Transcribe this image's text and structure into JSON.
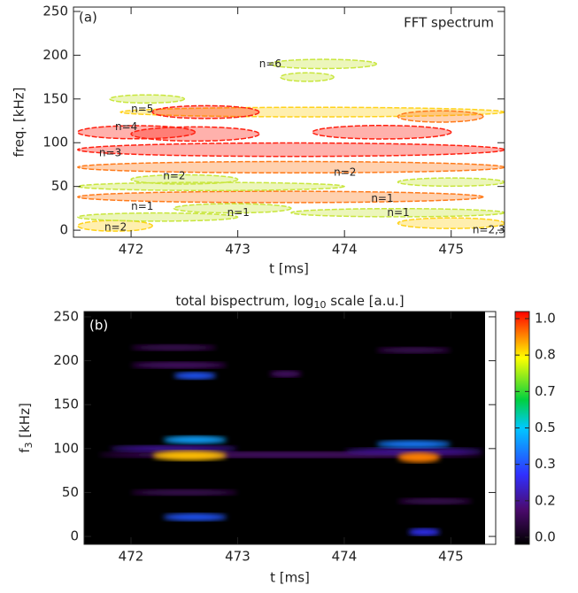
{
  "chart_data": [
    {
      "type": "contour",
      "title": "FFT spectrum",
      "panel_label": "(a)",
      "xlabel": "t  [ms]",
      "ylabel": "freq. [kHz]",
      "xlim": [
        471.46,
        475.5
      ],
      "ylim": [
        -8,
        255
      ],
      "xticks": [
        472,
        473,
        474,
        475
      ],
      "yticks": [
        0,
        50,
        100,
        150,
        200,
        250
      ],
      "ridges": [
        {
          "t0": 473.3,
          "t1": 474.3,
          "f": 190,
          "level": 0.3
        },
        {
          "t0": 473.4,
          "t1": 473.9,
          "f": 175,
          "level": 0.2
        },
        {
          "t0": 471.9,
          "t1": 475.5,
          "f": 135,
          "level": 0.35
        },
        {
          "t0": 472.2,
          "t1": 473.2,
          "f": 135,
          "level": 0.8
        },
        {
          "t0": 474.5,
          "t1": 475.3,
          "f": 130,
          "level": 0.6
        },
        {
          "t0": 471.5,
          "t1": 472.6,
          "f": 112,
          "level": 0.85
        },
        {
          "t0": 472.0,
          "t1": 473.2,
          "f": 110,
          "level": 1.0
        },
        {
          "t0": 473.7,
          "t1": 475.0,
          "f": 112,
          "level": 0.9
        },
        {
          "t0": 471.5,
          "t1": 475.5,
          "f": 92,
          "level": 0.9
        },
        {
          "t0": 471.5,
          "t1": 475.5,
          "f": 72,
          "level": 0.6
        },
        {
          "t0": 472.0,
          "t1": 473.0,
          "f": 58,
          "level": 0.3
        },
        {
          "t0": 471.5,
          "t1": 475.3,
          "f": 38,
          "level": 0.6
        },
        {
          "t0": 472.4,
          "t1": 473.5,
          "f": 25,
          "level": 0.3
        },
        {
          "t0": 471.5,
          "t1": 472.2,
          "f": 5,
          "level": 0.5
        },
        {
          "t0": 474.5,
          "t1": 475.5,
          "f": 8,
          "level": 0.5
        },
        {
          "t0": 471.5,
          "t1": 474.0,
          "f": 50,
          "level": 0.15
        },
        {
          "t0": 473.5,
          "t1": 475.5,
          "f": 20,
          "level": 0.15
        },
        {
          "t0": 471.5,
          "t1": 473.0,
          "f": 15,
          "level": 0.15
        },
        {
          "t0": 474.5,
          "t1": 475.5,
          "f": 55,
          "level": 0.15
        },
        {
          "t0": 471.8,
          "t1": 472.5,
          "f": 150,
          "level": 0.15
        }
      ],
      "annotations": [
        {
          "text": "n=6",
          "x": 473.2,
          "y": 190
        },
        {
          "text": "n=5",
          "x": 472.0,
          "y": 138
        },
        {
          "text": "n=4",
          "x": 471.85,
          "y": 118
        },
        {
          "text": "n=3",
          "x": 471.7,
          "y": 88
        },
        {
          "text": "n=2",
          "x": 472.3,
          "y": 62
        },
        {
          "text": "n=2",
          "x": 473.9,
          "y": 66
        },
        {
          "text": "n=1",
          "x": 472.0,
          "y": 27
        },
        {
          "text": "n=1",
          "x": 472.9,
          "y": 20
        },
        {
          "text": "n=1",
          "x": 474.25,
          "y": 36
        },
        {
          "text": "n=1",
          "x": 474.4,
          "y": 20
        },
        {
          "text": "n=2",
          "x": 471.75,
          "y": 3
        },
        {
          "text": "n=2,3",
          "x": 475.2,
          "y": 0
        }
      ]
    },
    {
      "type": "heatmap",
      "title": "total bispectrum, log",
      "title_sub": "10",
      "title_rest": " scale [a.u.]",
      "panel_label": "(b)",
      "xlabel": "t  [ms]",
      "ylabel": "f",
      "ylabel_sub": "3",
      "ylabel_rest": "  [kHz]",
      "xlim": [
        471.56,
        475.42
      ],
      "ylim": [
        -9,
        256
      ],
      "xticks": [
        472,
        473,
        474,
        475
      ],
      "yticks": [
        0,
        50,
        100,
        150,
        200,
        250
      ],
      "colorbar_ticks": [
        {
          "value": 0.0,
          "label": "0.0"
        },
        {
          "value": 0.2,
          "label": "0.2"
        },
        {
          "value": 0.3,
          "label": "0.3"
        },
        {
          "value": 0.5,
          "label": "0.5"
        },
        {
          "value": 0.7,
          "label": "0.7"
        },
        {
          "value": 0.8,
          "label": "0.8"
        },
        {
          "value": 1.0,
          "label": "1.0"
        }
      ],
      "blobs": [
        {
          "t0": 471.7,
          "t1": 475.3,
          "f": 93,
          "level": 0.15
        },
        {
          "t0": 471.8,
          "t1": 473.0,
          "f": 100,
          "level": 0.2
        },
        {
          "t0": 474.0,
          "t1": 475.3,
          "f": 97,
          "level": 0.2
        },
        {
          "t0": 472.3,
          "t1": 472.9,
          "f": 110,
          "level": 0.45
        },
        {
          "t0": 472.2,
          "t1": 472.9,
          "f": 92,
          "level": 0.85
        },
        {
          "t0": 474.3,
          "t1": 475.0,
          "f": 105,
          "level": 0.4
        },
        {
          "t0": 474.5,
          "t1": 474.9,
          "f": 90,
          "level": 0.9
        },
        {
          "t0": 472.3,
          "t1": 472.9,
          "f": 22,
          "level": 0.35
        },
        {
          "t0": 472.4,
          "t1": 472.8,
          "f": 183,
          "level": 0.35
        },
        {
          "t0": 472.0,
          "t1": 472.9,
          "f": 195,
          "level": 0.15
        },
        {
          "t0": 472.0,
          "t1": 472.8,
          "f": 215,
          "level": 0.12
        },
        {
          "t0": 473.3,
          "t1": 473.6,
          "f": 185,
          "level": 0.15
        },
        {
          "t0": 474.6,
          "t1": 474.9,
          "f": 5,
          "level": 0.3
        },
        {
          "t0": 474.3,
          "t1": 475.0,
          "f": 212,
          "level": 0.12
        },
        {
          "t0": 472.0,
          "t1": 473.0,
          "f": 50,
          "level": 0.12
        },
        {
          "t0": 474.5,
          "t1": 475.2,
          "f": 40,
          "level": 0.12
        }
      ]
    }
  ]
}
